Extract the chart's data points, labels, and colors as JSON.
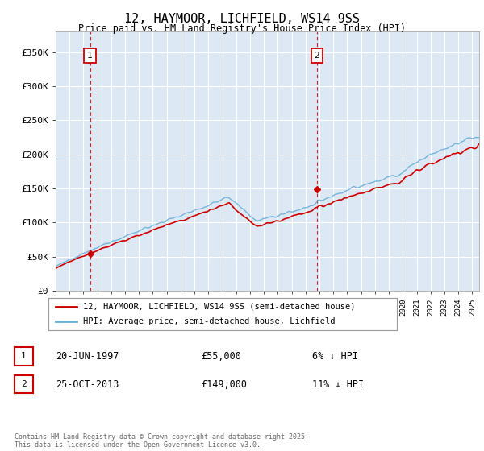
{
  "title": "12, HAYMOOR, LICHFIELD, WS14 9SS",
  "subtitle": "Price paid vs. HM Land Registry's House Price Index (HPI)",
  "ylim": [
    0,
    380000
  ],
  "yticks": [
    0,
    50000,
    100000,
    150000,
    200000,
    250000,
    300000,
    350000
  ],
  "ytick_labels": [
    "£0",
    "£50K",
    "£100K",
    "£150K",
    "£200K",
    "£250K",
    "£300K",
    "£350K"
  ],
  "sale1_year": 1997.47,
  "sale1_price": 55000,
  "sale1_label": "1",
  "sale1_date": "20-JUN-1997",
  "sale1_pct": "6% ↓ HPI",
  "sale2_year": 2013.82,
  "sale2_price": 149000,
  "sale2_label": "2",
  "sale2_date": "25-OCT-2013",
  "sale2_pct": "11% ↓ HPI",
  "hpi_color": "#6baed6",
  "sold_color": "#cc0000",
  "vline_color": "#cc0000",
  "background_color": "#ffffff",
  "plot_bg_color": "#dce9f5",
  "grid_color": "#ffffff",
  "legend_line1": "12, HAYMOOR, LICHFIELD, WS14 9SS (semi-detached house)",
  "legend_line2": "HPI: Average price, semi-detached house, Lichfield",
  "footer": "Contains HM Land Registry data © Crown copyright and database right 2025.\nThis data is licensed under the Open Government Licence v3.0."
}
